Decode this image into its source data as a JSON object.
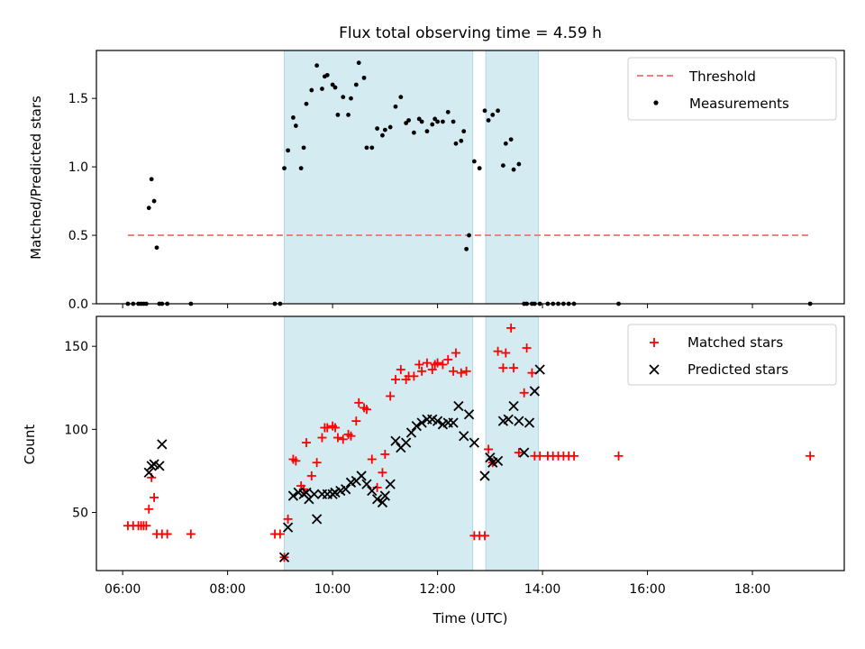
{
  "chart_data": [
    {
      "type": "scatter",
      "panel": "top",
      "title": "Flux total observing time = 4.59 h",
      "xlabel": "",
      "ylabel": "Matched/Predicted stars",
      "xlim": [
        5.5,
        19.75
      ],
      "ylim": [
        0,
        1.85
      ],
      "yticks": [
        0.0,
        0.5,
        1.0,
        1.5
      ],
      "ytick_labels": [
        "0.0",
        "0.5",
        "1.0",
        "1.5"
      ],
      "legend_position": "top-right",
      "shaded_intervals": [
        [
          9.08,
          12.67
        ],
        [
          12.92,
          13.92
        ]
      ],
      "colors": {
        "threshold": "#f08080",
        "measurements": "#000000",
        "shade": "#add8e6"
      },
      "threshold": {
        "name": "Threshold",
        "y": 0.5,
        "x_range": [
          6.1,
          19.1
        ]
      },
      "series": [
        {
          "name": "Measurements",
          "x": [
            6.1,
            6.2,
            6.3,
            6.35,
            6.4,
            6.45,
            6.5,
            6.55,
            6.6,
            6.65,
            6.7,
            6.75,
            6.85,
            7.3,
            8.9,
            9.0,
            9.08,
            9.15,
            9.25,
            9.3,
            9.4,
            9.45,
            9.5,
            9.6,
            9.7,
            9.8,
            9.85,
            9.9,
            10.0,
            10.05,
            10.1,
            10.2,
            10.3,
            10.35,
            10.45,
            10.5,
            10.6,
            10.65,
            10.75,
            10.85,
            10.95,
            11.0,
            11.1,
            11.2,
            11.3,
            11.4,
            11.45,
            11.55,
            11.65,
            11.7,
            11.8,
            11.9,
            11.95,
            12.0,
            12.1,
            12.2,
            12.3,
            12.35,
            12.45,
            12.5,
            12.55,
            12.6,
            12.7,
            12.8,
            12.9,
            12.97,
            13.05,
            13.15,
            13.25,
            13.3,
            13.4,
            13.45,
            13.55,
            13.65,
            13.7,
            13.8,
            13.85,
            13.95,
            14.1,
            14.2,
            14.3,
            14.4,
            14.5,
            14.6,
            15.45,
            19.1
          ],
          "y": [
            0,
            0,
            0,
            0,
            0,
            0,
            0.7,
            0.91,
            0.75,
            0.41,
            0,
            0,
            0,
            0,
            0,
            0,
            0.99,
            1.12,
            1.36,
            1.3,
            0.99,
            1.14,
            1.46,
            1.56,
            1.74,
            1.57,
            1.66,
            1.67,
            1.6,
            1.58,
            1.38,
            1.51,
            1.38,
            1.5,
            1.6,
            1.76,
            1.65,
            1.14,
            1.14,
            1.28,
            1.23,
            1.27,
            1.29,
            1.44,
            1.51,
            1.32,
            1.34,
            1.25,
            1.35,
            1.33,
            1.26,
            1.31,
            1.35,
            1.33,
            1.33,
            1.4,
            1.33,
            1.17,
            1.19,
            1.26,
            0.4,
            0.5,
            1.04,
            0.99,
            1.41,
            1.34,
            1.38,
            1.41,
            1.01,
            1.17,
            1.2,
            0.98,
            1.02,
            0,
            0,
            0,
            0,
            0,
            0,
            0,
            0,
            0,
            0,
            0,
            0,
            0
          ]
        }
      ]
    },
    {
      "type": "scatter",
      "panel": "bottom",
      "xlabel": "Time (UTC)",
      "ylabel": "Count",
      "xlim": [
        5.5,
        19.75
      ],
      "ylim": [
        15,
        168
      ],
      "xticks": [
        6,
        8,
        10,
        12,
        14,
        16,
        18
      ],
      "xtick_labels": [
        "06:00",
        "08:00",
        "10:00",
        "12:00",
        "14:00",
        "16:00",
        "18:00"
      ],
      "yticks": [
        50,
        100,
        150
      ],
      "ytick_labels": [
        "50",
        "100",
        "150"
      ],
      "legend_position": "top-right",
      "shaded_intervals": [
        [
          9.08,
          12.67
        ],
        [
          12.92,
          13.92
        ]
      ],
      "colors": {
        "matched": "#ff0000",
        "predicted": "#000000",
        "shade": "#add8e6"
      },
      "series": [
        {
          "name": "Matched stars",
          "marker": "plus",
          "x": [
            6.1,
            6.2,
            6.3,
            6.35,
            6.4,
            6.45,
            6.5,
            6.55,
            6.6,
            6.65,
            6.75,
            6.85,
            7.3,
            8.9,
            9.0,
            9.08,
            9.15,
            9.25,
            9.3,
            9.4,
            9.45,
            9.5,
            9.6,
            9.7,
            9.8,
            9.85,
            9.9,
            10.0,
            10.05,
            10.1,
            10.2,
            10.3,
            10.35,
            10.45,
            10.5,
            10.6,
            10.65,
            10.75,
            10.85,
            10.95,
            11.0,
            11.1,
            11.2,
            11.3,
            11.4,
            11.45,
            11.55,
            11.65,
            11.7,
            11.8,
            11.9,
            11.95,
            12.0,
            12.1,
            12.2,
            12.3,
            12.35,
            12.45,
            12.55,
            12.7,
            12.8,
            12.9,
            12.97,
            13.05,
            13.15,
            13.25,
            13.3,
            13.4,
            13.45,
            13.55,
            13.65,
            13.7,
            13.8,
            13.85,
            13.95,
            14.1,
            14.2,
            14.3,
            14.4,
            14.5,
            14.6,
            15.45,
            19.1
          ],
          "y": [
            42,
            42,
            42,
            42,
            42,
            42,
            52,
            71,
            59,
            37,
            37,
            37,
            37,
            37,
            37,
            23,
            46,
            82,
            81,
            66,
            64,
            92,
            72,
            80,
            95,
            101,
            101,
            102,
            101,
            95,
            94,
            97,
            96,
            105,
            116,
            113,
            112,
            82,
            65,
            74,
            85,
            120,
            130,
            136,
            130,
            132,
            132,
            139,
            135,
            140,
            136,
            139,
            140,
            139,
            142,
            135,
            146,
            134,
            135,
            36,
            36,
            36,
            88,
            80,
            147,
            137,
            146,
            161,
            137,
            86,
            122,
            149,
            134,
            84,
            84,
            84,
            84,
            84,
            84,
            84,
            84,
            84,
            84
          ]
        },
        {
          "name": "Predicted stars",
          "marker": "x",
          "x": [
            6.5,
            6.55,
            6.6,
            6.7,
            6.75,
            9.08,
            9.15,
            9.25,
            9.35,
            9.45,
            9.5,
            9.55,
            9.65,
            9.7,
            9.8,
            9.9,
            10.0,
            10.05,
            10.15,
            10.25,
            10.35,
            10.45,
            10.55,
            10.65,
            10.75,
            10.85,
            10.95,
            11.0,
            11.1,
            11.2,
            11.3,
            11.4,
            11.5,
            11.6,
            11.7,
            11.8,
            11.9,
            12.0,
            12.1,
            12.2,
            12.3,
            12.4,
            12.5,
            12.6,
            12.7,
            12.9,
            13.0,
            13.05,
            13.15,
            13.25,
            13.35,
            13.45,
            13.55,
            13.65,
            13.75,
            13.85,
            13.95
          ],
          "y": [
            74,
            78,
            79,
            78,
            91,
            23,
            41,
            60,
            62,
            61,
            62,
            58,
            61,
            46,
            61,
            61,
            61,
            62,
            63,
            64,
            68,
            69,
            72,
            67,
            63,
            58,
            56,
            60,
            67,
            93,
            89,
            92,
            98,
            102,
            104,
            106,
            106,
            105,
            103,
            104,
            104,
            114,
            96,
            109,
            92,
            72,
            83,
            80,
            81,
            105,
            106,
            114,
            105,
            86,
            104,
            123,
            136
          ]
        }
      ]
    }
  ]
}
